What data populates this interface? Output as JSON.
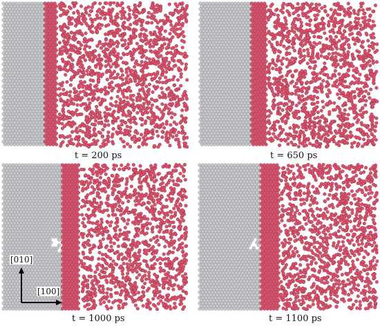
{
  "panels": [
    {
      "caption": "t = 200 ps",
      "solid_fraction": 0.3,
      "defect": false
    },
    {
      "caption": "t = 650 ps",
      "solid_fraction": 0.38,
      "defect": false
    },
    {
      "caption": "t = 1000 ps",
      "solid_fraction": 0.42,
      "defect": true
    },
    {
      "caption": "t = 1100 ps",
      "solid_fraction": 0.45,
      "defect": true
    }
  ],
  "axes": {
    "vertical": "[010]",
    "horizontal": "[100]"
  },
  "colors": {
    "solid_atom": "#c7c9cb",
    "solid_atom_edge": "#8e9094",
    "liquid_atom": "#d9536d",
    "liquid_atom_edge": "#9c2f44",
    "axis": "#000000"
  }
}
